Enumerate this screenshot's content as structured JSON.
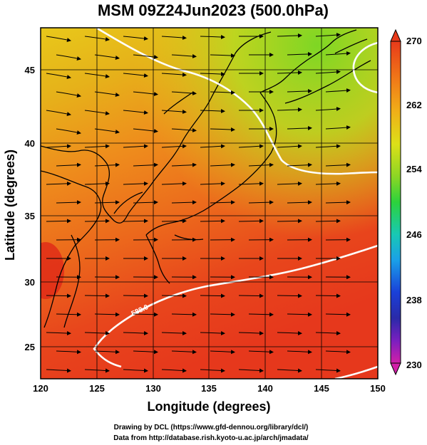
{
  "title": "MSM 09Z24Jun2023 (500.0hPa)",
  "xlabel": "Longitude (degrees)",
  "ylabel": "Latitude  (degrees)",
  "x_ticks": [
    "120",
    "125",
    "130",
    "135",
    "140",
    "145",
    "150"
  ],
  "y_ticks": [
    "25",
    "30",
    "35",
    "40",
    "45"
  ],
  "colorbar": {
    "ticks": [
      "270",
      "262",
      "254",
      "246",
      "238",
      "230"
    ],
    "min": 230,
    "max": 270,
    "colors": [
      "#d21fa8",
      "#7a1fc0",
      "#2a2aa8",
      "#1a40d8",
      "#1aa0e8",
      "#18c8b4",
      "#2cd23c",
      "#8cd624",
      "#dce018",
      "#f0b018",
      "#f07a18",
      "#e83a1a"
    ]
  },
  "contour_label": "588.0",
  "credits": {
    "line1": "Drawing by DCL (https://www.gfd-dennou.org/library/dcl/)",
    "line2": "Data from http://database.rish.kyoto-u.ac.jp/arch/jmadata/"
  },
  "chart_data": {
    "type": "map",
    "field": "500.0hPa temperature with wind streamlines",
    "xlim": [
      120,
      150
    ],
    "ylim": [
      22.5,
      47.5
    ],
    "colorbar_range": [
      230,
      270
    ]
  }
}
